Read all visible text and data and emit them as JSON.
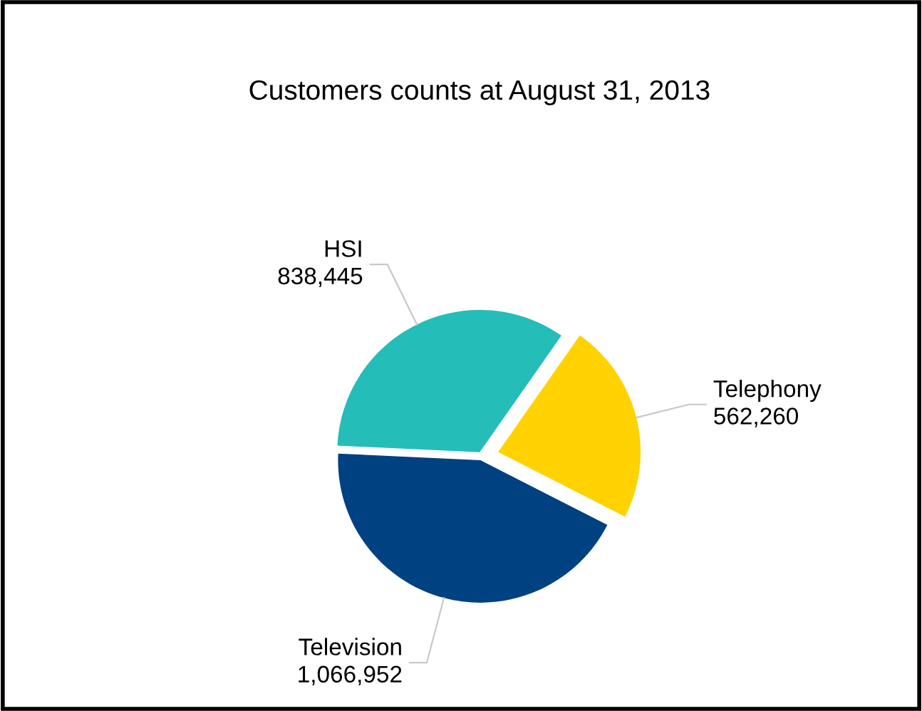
{
  "chart_data": {
    "type": "pie",
    "title": "Customers counts at August 31, 2013",
    "categories": [
      "Telephony",
      "Television",
      "HSI"
    ],
    "values": [
      562260,
      1066952,
      838445
    ],
    "value_labels": [
      "562,260",
      "1,066,952",
      "838,445"
    ],
    "colors": [
      "#ffd200",
      "#004181",
      "#24bdb8"
    ],
    "legend": false
  }
}
